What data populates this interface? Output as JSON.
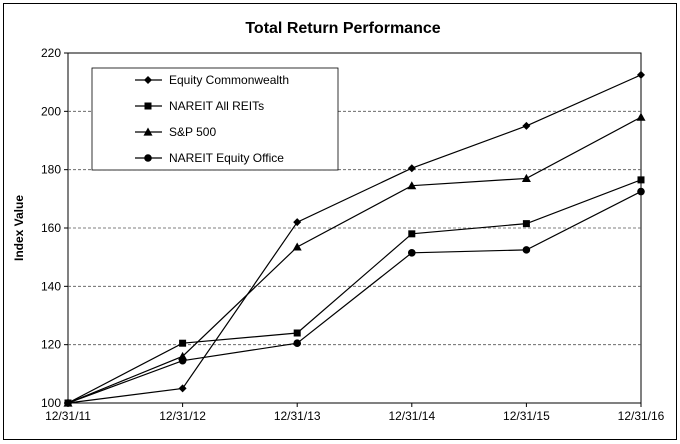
{
  "chart_data": {
    "type": "line",
    "title": "Total Return Performance",
    "xlabel": "",
    "ylabel": "Index Value",
    "categories": [
      "12/31/11",
      "12/31/12",
      "12/31/13",
      "12/31/14",
      "12/31/15",
      "12/31/16"
    ],
    "y_ticks": [
      "100",
      "120",
      "140",
      "160",
      "180",
      "200",
      "220"
    ],
    "ylim": [
      100,
      220
    ],
    "grid": "horizontal dashed",
    "legend_position": "top-left",
    "series": [
      {
        "name": "Equity Commonwealth",
        "marker": "diamond",
        "values": [
          100,
          105,
          162,
          180.5,
          195,
          212.5
        ]
      },
      {
        "name": "NAREIT All REITs",
        "marker": "square",
        "values": [
          100,
          120.5,
          124,
          158,
          161.5,
          176.5
        ]
      },
      {
        "name": "S&P 500",
        "marker": "triangle",
        "values": [
          100,
          116,
          153.5,
          174.5,
          177,
          198
        ]
      },
      {
        "name": "NAREIT Equity Office",
        "marker": "circle",
        "values": [
          100,
          114.5,
          120.5,
          151.5,
          152.5,
          172.5
        ]
      }
    ]
  }
}
